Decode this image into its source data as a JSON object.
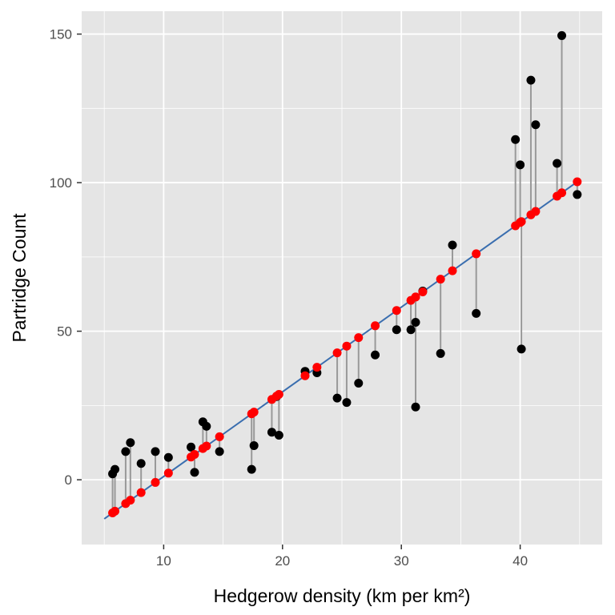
{
  "colors": {
    "panel_background": "#e5e5e5",
    "grid": "#ffffff",
    "observed_points": "#000000",
    "fitted_points": "#ff0000",
    "fit_line": "#3a6eaf",
    "residual_segments": "#999999"
  },
  "chart_data": {
    "type": "scatter",
    "title": "",
    "xlabel": "Hedgerow density (km per km²)",
    "ylabel": "Partridge Count",
    "xlim": [
      3.1,
      46.9
    ],
    "ylim": [
      -21.8,
      157.7
    ],
    "x_ticks": [
      10,
      20,
      30,
      40
    ],
    "y_ticks": [
      0,
      50,
      100,
      150
    ],
    "x_minor_ticks": [
      5,
      15,
      25,
      35,
      45
    ],
    "y_minor_ticks": [
      25,
      75,
      125
    ],
    "grid": true,
    "legend": "none",
    "fit_line": {
      "intercept": -27.4,
      "slope": 2.85,
      "x_range": [
        5.0,
        44.8
      ]
    },
    "observed": [
      {
        "x": 5.7,
        "y": 2
      },
      {
        "x": 5.9,
        "y": 3.5
      },
      {
        "x": 6.8,
        "y": 9.5
      },
      {
        "x": 7.2,
        "y": 12.5
      },
      {
        "x": 8.1,
        "y": 5.5
      },
      {
        "x": 9.3,
        "y": 9.5
      },
      {
        "x": 10.4,
        "y": 7.5
      },
      {
        "x": 12.3,
        "y": 11
      },
      {
        "x": 12.6,
        "y": 2.5
      },
      {
        "x": 13.3,
        "y": 19.5
      },
      {
        "x": 13.6,
        "y": 18
      },
      {
        "x": 14.7,
        "y": 9.5
      },
      {
        "x": 17.4,
        "y": 3.5
      },
      {
        "x": 17.6,
        "y": 11.5
      },
      {
        "x": 19.1,
        "y": 16
      },
      {
        "x": 19.5,
        "y": 28
      },
      {
        "x": 19.7,
        "y": 15
      },
      {
        "x": 21.9,
        "y": 36.5
      },
      {
        "x": 22.9,
        "y": 36
      },
      {
        "x": 24.6,
        "y": 27.5
      },
      {
        "x": 25.4,
        "y": 26
      },
      {
        "x": 26.4,
        "y": 32.5
      },
      {
        "x": 27.8,
        "y": 42
      },
      {
        "x": 29.6,
        "y": 50.5
      },
      {
        "x": 30.8,
        "y": 50.5
      },
      {
        "x": 31.2,
        "y": 24.5
      },
      {
        "x": 31.2,
        "y": 53
      },
      {
        "x": 31.8,
        "y": 63.5
      },
      {
        "x": 33.3,
        "y": 42.5
      },
      {
        "x": 34.3,
        "y": 79
      },
      {
        "x": 36.3,
        "y": 56
      },
      {
        "x": 39.6,
        "y": 114.5
      },
      {
        "x": 40.0,
        "y": 106
      },
      {
        "x": 40.1,
        "y": 44
      },
      {
        "x": 40.9,
        "y": 134.5
      },
      {
        "x": 41.3,
        "y": 119.5
      },
      {
        "x": 43.1,
        "y": 106.5
      },
      {
        "x": 43.5,
        "y": 149.5
      },
      {
        "x": 44.8,
        "y": 96
      }
    ]
  }
}
